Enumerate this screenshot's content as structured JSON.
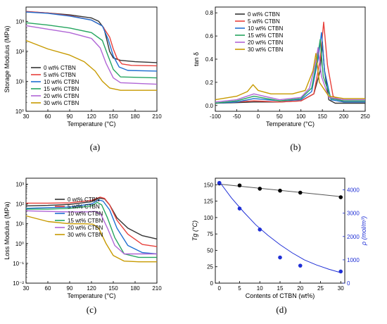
{
  "colors": {
    "0": "#333333",
    "5": "#e8413c",
    "10": "#1f6fd1",
    "15": "#25a55f",
    "20": "#b066d6",
    "30": "#c79a00",
    "dot_black": "#000000",
    "dot_blue": "#1f2fd6",
    "blue_axis": "#1f2fd6"
  },
  "chart_data": [
    {
      "type": "line",
      "panel": "(a)",
      "xlabel": "Temperature (°C)",
      "ylabel": "Storage Modulus (MPa)",
      "xlim": [
        30,
        210
      ],
      "ylim": [
        1,
        3000
      ],
      "yscale": "log",
      "xticks": [
        "30",
        "60",
        "90",
        "120",
        "150",
        "180",
        "210"
      ],
      "yticks": [
        "10⁰",
        "10¹",
        "10²",
        "10³"
      ],
      "legend_position": "bottom-left",
      "series": [
        {
          "name": "0  wt% CTBN",
          "color_key": "0",
          "x": [
            30,
            60,
            90,
            120,
            130,
            137,
            141,
            145,
            150,
            160,
            180,
            210
          ],
          "y": [
            2100,
            1900,
            1650,
            1300,
            1000,
            600,
            250,
            100,
            60,
            50,
            45,
            42
          ]
        },
        {
          "name": "5  wt% CTBN",
          "color_key": "5",
          "x": [
            30,
            60,
            90,
            120,
            135,
            145,
            150,
            155,
            162,
            175,
            210
          ],
          "y": [
            2150,
            1900,
            1550,
            1100,
            700,
            300,
            120,
            60,
            38,
            34,
            33
          ]
        },
        {
          "name": "10 wt% CTBN",
          "color_key": "10",
          "x": [
            30,
            60,
            90,
            120,
            135,
            143,
            150,
            158,
            170,
            210
          ],
          "y": [
            2050,
            1850,
            1500,
            1100,
            700,
            250,
            70,
            30,
            23,
            22
          ]
        },
        {
          "name": "15 wt% CTBN",
          "color_key": "15",
          "x": [
            30,
            60,
            90,
            120,
            135,
            142,
            150,
            160,
            210
          ],
          "y": [
            900,
            750,
            600,
            420,
            230,
            80,
            25,
            14,
            13
          ]
        },
        {
          "name": "20 wt% CTBN",
          "color_key": "20",
          "x": [
            30,
            60,
            90,
            120,
            132,
            140,
            150,
            160,
            210
          ],
          "y": [
            720,
            550,
            420,
            270,
            130,
            40,
            13,
            9,
            8
          ]
        },
        {
          "name": "30 wt% CTBN",
          "color_key": "30",
          "x": [
            30,
            60,
            90,
            110,
            125,
            135,
            145,
            160,
            210
          ],
          "y": [
            230,
            120,
            75,
            45,
            22,
            10,
            6,
            5,
            5
          ]
        }
      ]
    },
    {
      "type": "line",
      "panel": "(b)",
      "xlabel": "Temperature (°C)",
      "ylabel": "tan δ",
      "xlim": [
        -100,
        250
      ],
      "ylim": [
        -0.05,
        0.85
      ],
      "xticks": [
        "-100",
        "-50",
        "0",
        "50",
        "100",
        "150",
        "200",
        "250"
      ],
      "yticks": [
        "0.0",
        "0.2",
        "0.4",
        "0.6",
        "0.8"
      ],
      "legend_position": "top-left",
      "series": [
        {
          "name": "0  wt% CTBN",
          "color_key": "0",
          "x": [
            -100,
            -50,
            -10,
            50,
            100,
            130,
            145,
            150,
            155,
            165,
            180,
            250
          ],
          "y": [
            0.02,
            0.025,
            0.03,
            0.03,
            0.04,
            0.1,
            0.3,
            0.55,
            0.3,
            0.05,
            0.02,
            0.02
          ]
        },
        {
          "name": "5  wt% CTBN",
          "color_key": "5",
          "x": [
            -100,
            -50,
            -10,
            50,
            100,
            130,
            145,
            153,
            162,
            175,
            200,
            250
          ],
          "y": [
            0.02,
            0.03,
            0.04,
            0.03,
            0.04,
            0.1,
            0.4,
            0.72,
            0.35,
            0.08,
            0.03,
            0.03
          ]
        },
        {
          "name": "10 wt% CTBN",
          "color_key": "10",
          "x": [
            -100,
            -50,
            -10,
            50,
            100,
            125,
            140,
            148,
            155,
            170,
            200,
            250
          ],
          "y": [
            0.02,
            0.03,
            0.06,
            0.04,
            0.05,
            0.12,
            0.4,
            0.63,
            0.3,
            0.05,
            0.03,
            0.03
          ]
        },
        {
          "name": "15 wt% CTBN",
          "color_key": "15",
          "x": [
            -100,
            -50,
            -10,
            50,
            100,
            125,
            138,
            145,
            152,
            170,
            200,
            250
          ],
          "y": [
            0.02,
            0.04,
            0.08,
            0.04,
            0.06,
            0.15,
            0.4,
            0.57,
            0.25,
            0.06,
            0.04,
            0.04
          ]
        },
        {
          "name": "20 wt% CTBN",
          "color_key": "20",
          "x": [
            -100,
            -50,
            -10,
            50,
            100,
            120,
            133,
            140,
            148,
            165,
            200,
            250
          ],
          "y": [
            0.03,
            0.05,
            0.1,
            0.05,
            0.07,
            0.15,
            0.35,
            0.5,
            0.25,
            0.07,
            0.05,
            0.05
          ]
        },
        {
          "name": "30 wt% CTBN",
          "color_key": "30",
          "x": [
            -100,
            -50,
            -25,
            -12,
            0,
            30,
            80,
            110,
            128,
            135,
            143,
            165,
            200,
            250
          ],
          "y": [
            0.05,
            0.08,
            0.12,
            0.18,
            0.13,
            0.1,
            0.1,
            0.13,
            0.3,
            0.45,
            0.2,
            0.08,
            0.06,
            0.06
          ]
        }
      ]
    },
    {
      "type": "line",
      "panel": "(c)",
      "xlabel": "Temperature (°C)",
      "ylabel": "Loss Modulus (MPa)",
      "xlim": [
        30,
        210
      ],
      "ylim": [
        0.01,
        2000
      ],
      "yscale": "log",
      "xticks": [
        "30",
        "60",
        "90",
        "120",
        "150",
        "180",
        "210"
      ],
      "yticks": [
        "10⁻²",
        "10⁻¹",
        "10⁰",
        "10¹",
        "10²",
        "10³"
      ],
      "legend_position": "right",
      "series": [
        {
          "name": "0  wt% CTBN",
          "color_key": "0",
          "x": [
            30,
            60,
            90,
            120,
            130,
            138,
            145,
            155,
            170,
            190,
            210
          ],
          "y": [
            80,
            85,
            95,
            130,
            200,
            180,
            90,
            20,
            6,
            2.5,
            1.7
          ]
        },
        {
          "name": "5  wt% CTBN",
          "color_key": "5",
          "x": [
            30,
            60,
            90,
            120,
            132,
            138,
            145,
            155,
            170,
            190,
            210
          ],
          "y": [
            110,
            110,
            115,
            150,
            220,
            190,
            90,
            15,
            3,
            0.9,
            0.7
          ]
        },
        {
          "name": "10 wt% CTBN",
          "color_key": "10",
          "x": [
            30,
            60,
            90,
            120,
            130,
            136,
            145,
            155,
            170,
            190,
            210
          ],
          "y": [
            60,
            65,
            70,
            100,
            160,
            140,
            50,
            6,
            0.8,
            0.35,
            0.3
          ]
        },
        {
          "name": "15 wt% CTBN",
          "color_key": "15",
          "x": [
            30,
            60,
            90,
            120,
            128,
            134,
            142,
            152,
            165,
            185,
            210
          ],
          "y": [
            55,
            55,
            60,
            80,
            120,
            90,
            20,
            2,
            0.3,
            0.2,
            0.2
          ]
        },
        {
          "name": "20 wt% CTBN",
          "color_key": "20",
          "x": [
            30,
            60,
            90,
            115,
            125,
            133,
            142,
            152,
            165,
            185,
            210
          ],
          "y": [
            45,
            42,
            40,
            40,
            42,
            30,
            6,
            0.8,
            0.3,
            0.3,
            0.3
          ]
        },
        {
          "name": "30 wt% CTBN",
          "color_key": "30",
          "x": [
            30,
            60,
            90,
            110,
            122,
            130,
            140,
            150,
            165,
            185,
            210
          ],
          "y": [
            25,
            13,
            10,
            10,
            9.5,
            6,
            1,
            0.25,
            0.13,
            0.12,
            0.12
          ]
        }
      ]
    },
    {
      "type": "scatter",
      "panel": "(d)",
      "xlabel": "Contents of CTBN (wt%)",
      "ylabel_left": "Tg (°C)",
      "ylabel_right": "ρ (mol/m³)",
      "xlim": [
        -1,
        31
      ],
      "ylim_left": [
        0,
        160
      ],
      "ylim_right": [
        0,
        4500
      ],
      "xticks": [
        "0",
        "5",
        "10",
        "15",
        "20",
        "25",
        "30"
      ],
      "yticks_left": [
        "0",
        "25",
        "50",
        "75",
        "100",
        "125",
        "150"
      ],
      "yticks_right": [
        "0",
        "1000",
        "2000",
        "3000",
        "4000"
      ],
      "series": [
        {
          "name": "Tg",
          "axis": "left",
          "color_key": "dot_black",
          "x": [
            0,
            5,
            10,
            15,
            20,
            30
          ],
          "y": [
            152,
            149,
            144,
            141,
            138,
            131
          ],
          "fit": {
            "x": [
              0,
              30
            ],
            "y": [
              151,
              132
            ]
          }
        },
        {
          "name": "ρ",
          "axis": "right",
          "color_key": "dot_blue",
          "x": [
            0,
            5,
            10,
            15,
            20,
            30
          ],
          "y": [
            4300,
            3200,
            2300,
            1100,
            750,
            500
          ],
          "fit": {
            "x": [
              0,
              3,
              6,
              9,
              12,
              15,
              18,
              21,
              24,
              27,
              30
            ],
            "y": [
              4350,
              3650,
              3050,
              2500,
              2050,
              1650,
              1300,
              1000,
              780,
              600,
              450
            ]
          }
        }
      ]
    }
  ]
}
